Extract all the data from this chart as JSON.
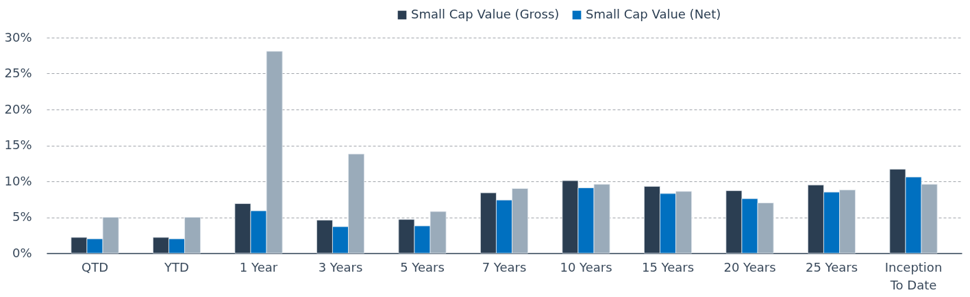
{
  "chart_data": {
    "type": "bar",
    "categories": [
      "QTD",
      "YTD",
      "1 Year",
      "3 Years",
      "5 Years",
      "7 Years",
      "10 Years",
      "15 Years",
      "20 Years",
      "25 Years",
      "Inception To Date"
    ],
    "series": [
      {
        "name": "Small Cap Value (Gross)",
        "color": "#2b3e52",
        "values": [
          2.2,
          2.2,
          6.9,
          4.6,
          4.7,
          8.4,
          10.1,
          9.3,
          8.7,
          9.5,
          11.7
        ]
      },
      {
        "name": "Small Cap Value (Net)",
        "color": "#0070c0",
        "values": [
          2.0,
          2.0,
          5.9,
          3.7,
          3.8,
          7.4,
          9.1,
          8.3,
          7.6,
          8.5,
          10.6
        ]
      },
      {
        "color": "#9aabba",
        "values": [
          5.0,
          5.0,
          28.1,
          13.8,
          5.8,
          9.0,
          9.6,
          8.6,
          7.0,
          8.8,
          9.6
        ]
      }
    ],
    "ylim": [
      0,
      30
    ],
    "yticks": [
      {
        "value": 0,
        "label": "0%"
      },
      {
        "value": 5,
        "label": "5%"
      },
      {
        "value": 10,
        "label": "10%"
      },
      {
        "value": 15,
        "label": "15%"
      },
      {
        "value": 20,
        "label": "20%"
      },
      {
        "value": 25,
        "label": "25%"
      },
      {
        "value": 30,
        "label": "30%"
      }
    ],
    "grid": "y",
    "legend": "top right"
  }
}
